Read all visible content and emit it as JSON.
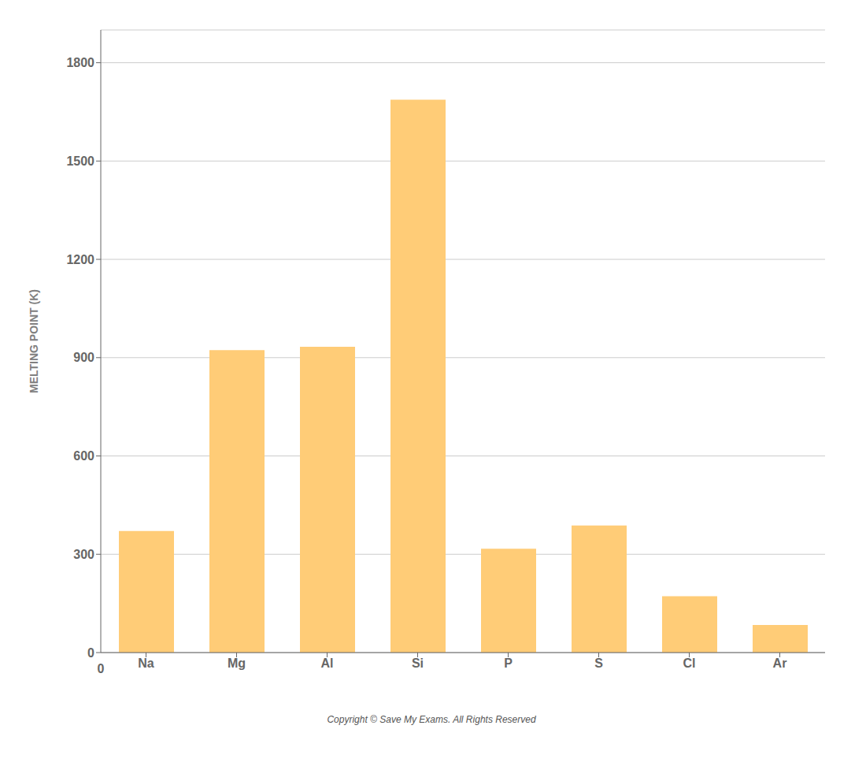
{
  "chart_data": {
    "type": "bar",
    "categories": [
      "Na",
      "Mg",
      "Al",
      "Si",
      "P",
      "S",
      "Cl",
      "Ar"
    ],
    "values": [
      371,
      923,
      933,
      1687,
      317,
      388,
      172,
      84
    ],
    "color": "#FFCC77",
    "ylabel": "MELTING  POINT  (K)",
    "ylim": [
      0,
      1900
    ],
    "yticks": [
      0,
      300,
      600,
      900,
      1200,
      1500,
      1800
    ],
    "grid": true,
    "annotations": [
      "0",
      "Copyright © Save My Exams. All Rights Reserved"
    ]
  }
}
